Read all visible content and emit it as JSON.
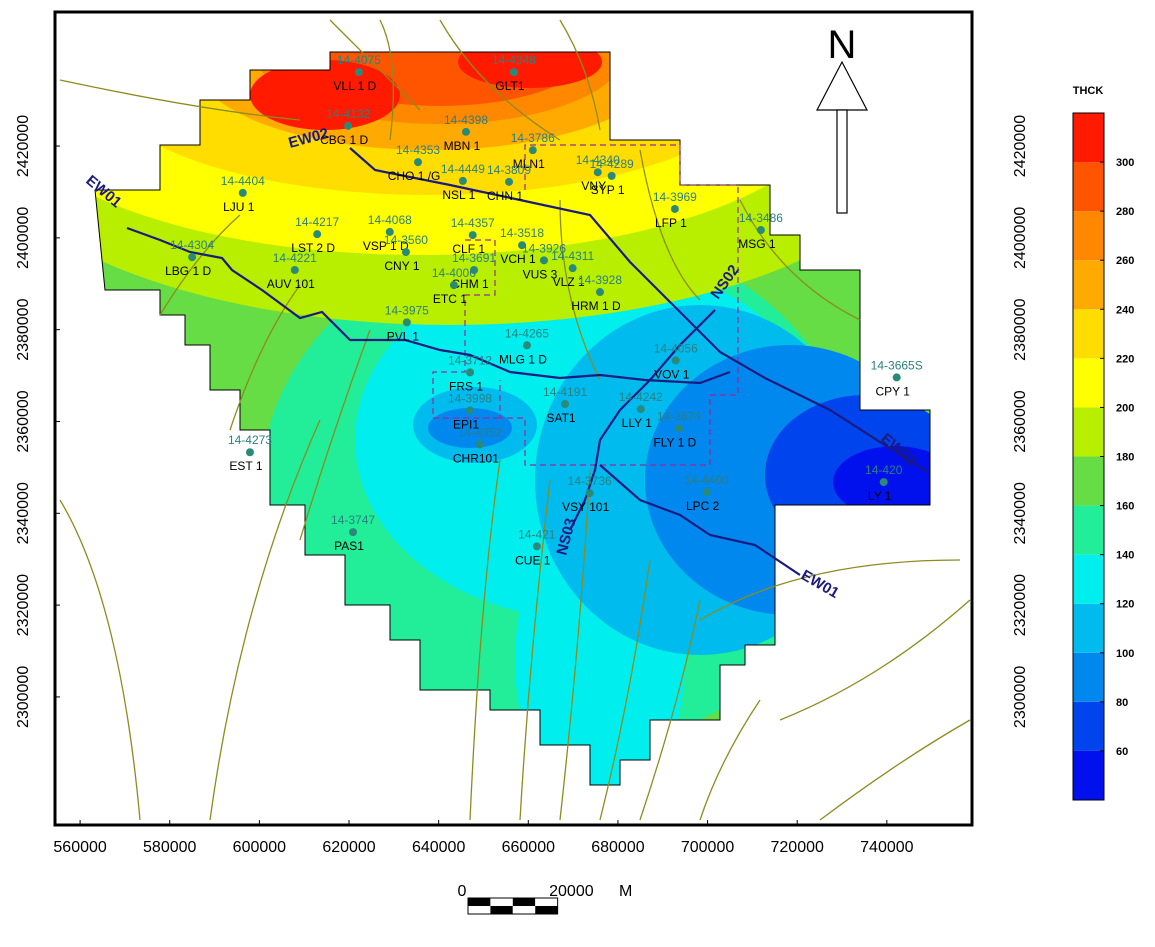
{
  "axes": {
    "xlim": [
      554400,
      759000
    ],
    "ylim": [
      2272100,
      2449200
    ],
    "xticks": [
      560000,
      580000,
      600000,
      620000,
      640000,
      660000,
      680000,
      700000,
      720000,
      740000
    ],
    "yticks": [
      2300000,
      2320000,
      2340000,
      2360000,
      2380000,
      2400000,
      2420000
    ]
  },
  "north_label": "N",
  "colorbar": {
    "title": "THCK",
    "lim": [
      40,
      320
    ],
    "ticks": [
      60,
      80,
      100,
      120,
      140,
      160,
      180,
      200,
      220,
      240,
      260,
      280,
      300
    ],
    "colors": [
      "#0011ee",
      "#0044ee",
      "#0088ee",
      "#00bbee",
      "#00eeee",
      "#22ee99",
      "#66dd44",
      "#b8ee00",
      "#ffff00",
      "#ffdd00",
      "#ffaa00",
      "#ff8800",
      "#ff5500",
      "#ff1a00"
    ]
  },
  "sections": [
    "EW02",
    "EW01",
    "NS02",
    "NS03",
    "EW02",
    "EW01"
  ],
  "wells": [
    {
      "id": "14-4075",
      "name": "VLL 1 D",
      "x": 622200,
      "y": 2436100
    },
    {
      "id": "14-4348",
      "name": "GLT1",
      "x": 656800,
      "y": 2436100
    },
    {
      "id": "14-4132",
      "name": "CBG 1 D",
      "x": 619800,
      "y": 2424400
    },
    {
      "id": "14-4398",
      "name": "MBN 1",
      "x": 646100,
      "y": 2423100
    },
    {
      "id": "14-3786",
      "name": "MLN1",
      "x": 661000,
      "y": 2419100
    },
    {
      "id": "14-4353",
      "name": "CHO 1 /G",
      "x": 635400,
      "y": 2416500
    },
    {
      "id": "14-4449",
      "name": "NSL 1",
      "x": 645400,
      "y": 2412400
    },
    {
      "id": "14-3809",
      "name": "CHN 1",
      "x": 655700,
      "y": 2412200
    },
    {
      "id": "14-4340",
      "name": "VNY",
      "x": 675500,
      "y": 2414300
    },
    {
      "id": "14-4289",
      "name": "SYP 1",
      "x": 678600,
      "y": 2413500
    },
    {
      "id": "14-4404",
      "name": "LJU 1",
      "x": 596300,
      "y": 2409800
    },
    {
      "id": "14-3969",
      "name": "LFP 1",
      "x": 692700,
      "y": 2406300
    },
    {
      "id": "14-3486",
      "name": "MSG 1",
      "x": 711900,
      "y": 2401700
    },
    {
      "id": "14-4217",
      "name": "LST 2 D",
      "x": 612900,
      "y": 2400800
    },
    {
      "id": "14-4068",
      "name": "VSP 1 D",
      "x": 629100,
      "y": 2401300
    },
    {
      "id": "14-4357",
      "name": "CLF 1",
      "x": 647600,
      "y": 2400600
    },
    {
      "id": "14-3560",
      "name": "CNY 1",
      "x": 632700,
      "y": 2396900
    },
    {
      "id": "14-3518",
      "name": "VCH 1",
      "x": 658600,
      "y": 2398400
    },
    {
      "id": "14-3926",
      "name": "VUS 3",
      "x": 663500,
      "y": 2395100
    },
    {
      "id": "14-4304",
      "name": "LBG 1 D",
      "x": 585000,
      "y": 2395800
    },
    {
      "id": "14-4221",
      "name": "AUV 101",
      "x": 607900,
      "y": 2393000
    },
    {
      "id": "14-3691",
      "name": "CHM 1",
      "x": 647900,
      "y": 2393000
    },
    {
      "id": "14-4311",
      "name": "VLZ 1",
      "x": 669900,
      "y": 2393400
    },
    {
      "id": "14-4006",
      "name": "ETC 1",
      "x": 643400,
      "y": 2389700
    },
    {
      "id": "14-3928",
      "name": "HRM 1 D",
      "x": 676000,
      "y": 2388200
    },
    {
      "id": "14-3975",
      "name": "PVL 1",
      "x": 632900,
      "y": 2381600
    },
    {
      "id": "14-4265",
      "name": "MLG 1 D",
      "x": 659700,
      "y": 2376600
    },
    {
      "id": "14-4056",
      "name": "VOV 1",
      "x": 692900,
      "y": 2373300
    },
    {
      "id": "14-3712",
      "name": "FRS 1",
      "x": 647000,
      "y": 2370700
    },
    {
      "id": "14-3665S",
      "name": "CPY 1",
      "x": 742200,
      "y": 2369600
    },
    {
      "id": "14-4191",
      "name": "SAT1",
      "x": 668200,
      "y": 2363800
    },
    {
      "id": "14-4242",
      "name": "LLY 1",
      "x": 685100,
      "y": 2362700
    },
    {
      "id": "14-3998",
      "name": "EPI1",
      "x": 647000,
      "y": 2362400
    },
    {
      "id": "14-3674",
      "name": "FLY 1 D",
      "x": 693600,
      "y": 2358500
    },
    {
      "id": "14-4352",
      "name": "CHR101",
      "x": 649200,
      "y": 2355000
    },
    {
      "id": "14-4273",
      "name": "EST 1",
      "x": 597900,
      "y": 2353300
    },
    {
      "id": "14-420",
      "name": "LY 1",
      "x": 739300,
      "y": 2346800
    },
    {
      "id": "14-3736",
      "name": "VSY 101",
      "x": 673700,
      "y": 2344400
    },
    {
      "id": "14-4400",
      "name": "LPC 2",
      "x": 699800,
      "y": 2344600
    },
    {
      "id": "14-3747",
      "name": "PAS1",
      "x": 620900,
      "y": 2335900
    },
    {
      "id": "14-421",
      "name": "CUE 1",
      "x": 661900,
      "y": 2332800
    }
  ],
  "scale_bar": {
    "start": 0,
    "length": 20000,
    "unit": "M"
  }
}
